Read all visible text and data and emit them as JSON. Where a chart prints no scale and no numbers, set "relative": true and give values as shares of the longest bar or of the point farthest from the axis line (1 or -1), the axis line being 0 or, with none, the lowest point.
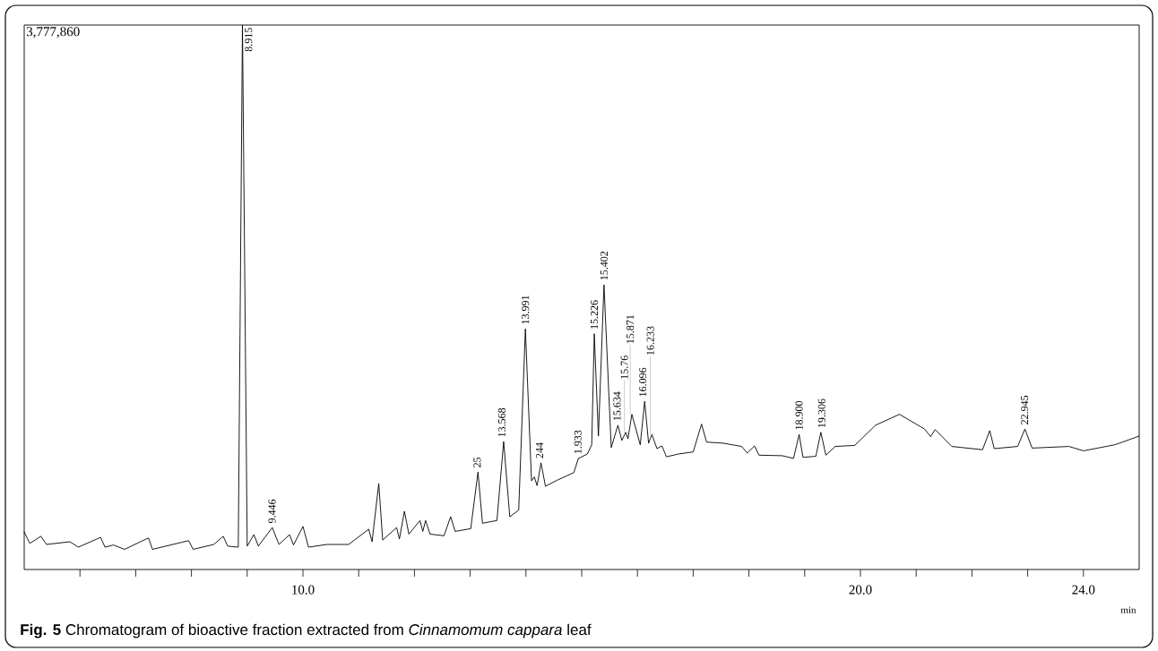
{
  "chart_data": {
    "type": "line",
    "relative": true,
    "title": "**Fig. 5** Chromatogram of bioactive fraction extracted from *Cinnamomum cappara* leaf",
    "xlabel": "min",
    "xlim": [
      5,
      25
    ],
    "xticks": [
      {
        "value": 6,
        "label": null
      },
      {
        "value": 7,
        "label": null
      },
      {
        "value": 8,
        "label": null
      },
      {
        "value": 9,
        "label": null
      },
      {
        "value": 10,
        "label": "10.0"
      },
      {
        "value": 11,
        "label": null
      },
      {
        "value": 12,
        "label": null
      },
      {
        "value": 13,
        "label": null
      },
      {
        "value": 14,
        "label": null
      },
      {
        "value": 15,
        "label": null
      },
      {
        "value": 16,
        "label": null
      },
      {
        "value": 17,
        "label": null
      },
      {
        "value": 18,
        "label": null
      },
      {
        "value": 19,
        "label": null
      },
      {
        "value": 20,
        "label": "20.0"
      },
      {
        "value": 21,
        "label": null
      },
      {
        "value": 22,
        "label": null
      },
      {
        "value": 23,
        "label": null
      },
      {
        "value": 24,
        "label": "24.0"
      }
    ],
    "series": [
      {
        "color": "#000000",
        "x": [
          5.0,
          5.1,
          5.3,
          5.4,
          5.82,
          5.97,
          6.37,
          6.45,
          6.6,
          6.8,
          7.23,
          7.3,
          7.95,
          8.03,
          8.4,
          8.57,
          8.65,
          8.84,
          8.915,
          9.0,
          9.12,
          9.2,
          9.45,
          9.57,
          9.76,
          9.83,
          10.0,
          10.1,
          10.43,
          10.82,
          11.18,
          11.24,
          11.36,
          11.43,
          11.68,
          11.73,
          11.82,
          11.9,
          12.1,
          12.15,
          12.2,
          12.28,
          12.53,
          12.65,
          12.73,
          13.01,
          13.14,
          13.22,
          13.48,
          13.6,
          13.71,
          13.87,
          13.99,
          14.1,
          14.15,
          14.2,
          14.27,
          14.35,
          14.56,
          14.86,
          14.94,
          15.1,
          15.18,
          15.226,
          15.3,
          15.4,
          15.53,
          15.65,
          15.72,
          15.79,
          15.83,
          15.9,
          16.05,
          16.13,
          16.2,
          16.26,
          16.35,
          16.44,
          16.52,
          16.73,
          17.0,
          17.15,
          17.24,
          17.54,
          17.87,
          17.97,
          18.1,
          18.18,
          18.6,
          18.8,
          18.9,
          18.97,
          19.2,
          19.29,
          19.38,
          19.55,
          19.9,
          20.27,
          20.7,
          21.15,
          21.26,
          21.34,
          21.64,
          22.19,
          22.32,
          22.4,
          22.82,
          22.95,
          23.08,
          23.74,
          24.0,
          24.56,
          25.0
        ],
        "values": [
          0.069,
          0.048,
          0.061,
          0.046,
          0.051,
          0.041,
          0.059,
          0.041,
          0.045,
          0.037,
          0.058,
          0.037,
          0.053,
          0.037,
          0.046,
          0.061,
          0.043,
          0.041,
          1.0,
          0.043,
          0.064,
          0.043,
          0.077,
          0.046,
          0.064,
          0.045,
          0.079,
          0.041,
          0.046,
          0.046,
          0.074,
          0.051,
          0.158,
          0.054,
          0.077,
          0.056,
          0.107,
          0.065,
          0.09,
          0.07,
          0.09,
          0.065,
          0.062,
          0.097,
          0.07,
          0.075,
          0.179,
          0.085,
          0.09,
          0.235,
          0.097,
          0.109,
          0.442,
          0.163,
          0.17,
          0.154,
          0.196,
          0.153,
          0.164,
          0.178,
          0.204,
          0.212,
          0.229,
          0.433,
          0.245,
          0.523,
          0.224,
          0.265,
          0.237,
          0.252,
          0.24,
          0.285,
          0.229,
          0.309,
          0.232,
          0.248,
          0.222,
          0.227,
          0.207,
          0.212,
          0.216,
          0.267,
          0.234,
          0.232,
          0.226,
          0.214,
          0.227,
          0.21,
          0.209,
          0.204,
          0.248,
          0.206,
          0.208,
          0.252,
          0.21,
          0.226,
          0.228,
          0.265,
          0.285,
          0.258,
          0.244,
          0.257,
          0.226,
          0.22,
          0.255,
          0.222,
          0.226,
          0.258,
          0.223,
          0.226,
          0.218,
          0.229,
          0.245
        ]
      }
    ],
    "annotations": [
      "3,777,860",
      {
        "text": "8.915",
        "x": 8.915,
        "y": 1.0
      },
      {
        "text": "9.446",
        "x": 9.446,
        "y": 0.077
      },
      {
        "text": "25",
        "x": 13.125,
        "y": 0.179
      },
      {
        "text": "13.568",
        "x": 13.568,
        "y": 0.235
      },
      {
        "text": "13.991",
        "x": 13.991,
        "y": 0.442
      },
      {
        "text": "244",
        "x": 14.244,
        "y": 0.196
      },
      {
        "text": "1.933",
        "x": 14.933,
        "y": 0.204
      },
      {
        "text": "15.226",
        "x": 15.226,
        "y": 0.433
      },
      {
        "text": "15.402",
        "x": 15.402,
        "y": 0.523
      },
      {
        "text": "15.634",
        "x": 15.634,
        "y": 0.265
      },
      {
        "text": "15.76",
        "x": 15.767,
        "y": 0.252
      },
      {
        "text": "15.871",
        "x": 15.871,
        "y": 0.285
      },
      {
        "text": "16.096",
        "x": 16.096,
        "y": 0.309
      },
      {
        "text": "16.233",
        "x": 16.233,
        "y": 0.248
      },
      {
        "text": "18.900",
        "x": 18.9,
        "y": 0.248
      },
      {
        "text": "19.306",
        "x": 19.306,
        "y": 0.252
      },
      {
        "text": "22.945",
        "x": 22.945,
        "y": 0.258
      }
    ]
  }
}
